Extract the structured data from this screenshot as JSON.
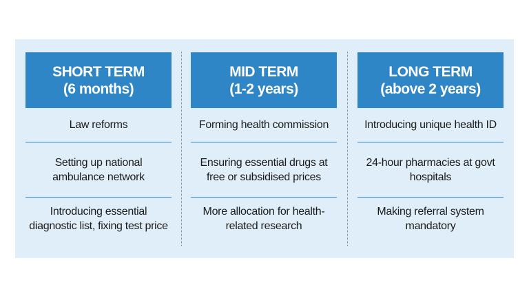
{
  "colors": {
    "header_bg": "#2f86c7",
    "panel_bg": "#dfeef8",
    "separator": "#2f86c7"
  },
  "columns": [
    {
      "title": "SHORT TERM",
      "subtitle": "(6 months)",
      "items": [
        "Law reforms",
        "Setting up national ambulance network",
        "Introducing essential diagnostic list, fixing test price"
      ]
    },
    {
      "title": "MID TERM",
      "subtitle": "(1-2 years)",
      "items": [
        "Forming health commission",
        "Ensuring essential drugs at free or subsidised prices",
        "More allocation for health-related research"
      ]
    },
    {
      "title": "LONG TERM",
      "subtitle": "(above 2 years)",
      "items": [
        "Introducing unique health ID",
        "24-hour pharmacies at govt hospitals",
        "Making referral system mandatory"
      ]
    }
  ]
}
